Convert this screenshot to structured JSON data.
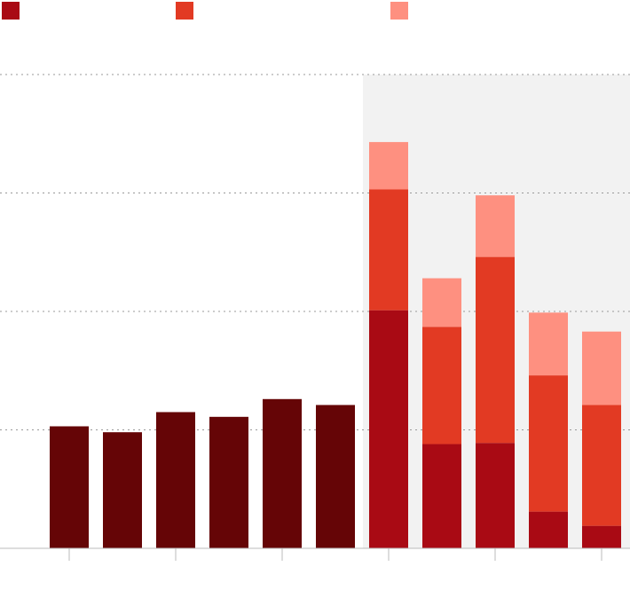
{
  "chart_data": {
    "type": "stacked_bar",
    "categories": [
      null,
      null,
      null,
      null,
      null,
      null,
      null,
      null,
      null,
      null,
      null
    ],
    "series": [
      {
        "color": "#a90a14",
        "colors": [
          "#650506",
          "#650506",
          "#650506",
          "#650506",
          "#650506",
          "#650506",
          "#a90a14",
          "#a90a14",
          "#a90a14",
          "#a90a14",
          "#a90a14"
        ],
        "values": [
          1.03,
          0.98,
          1.15,
          1.11,
          1.26,
          1.21,
          2.01,
          0.88,
          0.89,
          0.31,
          0.19
        ]
      },
      {
        "color": "#e23a23",
        "values": [
          null,
          null,
          null,
          null,
          null,
          null,
          1.02,
          0.99,
          1.57,
          1.15,
          1.02
        ]
      },
      {
        "color": "#fe9080",
        "values": [
          null,
          null,
          null,
          null,
          null,
          null,
          0.4,
          0.41,
          0.52,
          0.53,
          0.62
        ]
      }
    ],
    "ylim": [
      0,
      4
    ],
    "yticks": [
      1,
      2,
      3,
      4
    ],
    "grid": true
  }
}
